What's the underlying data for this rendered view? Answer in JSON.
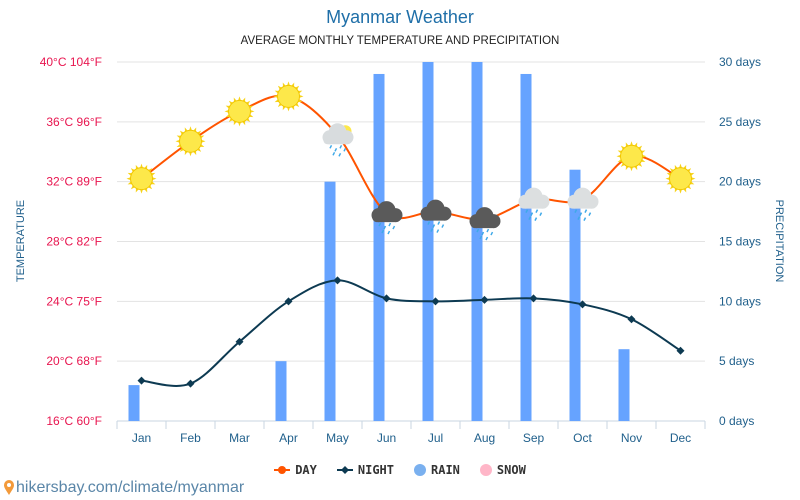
{
  "header": {
    "title": "Myanmar Weather",
    "subtitle": "AVERAGE MONTHLY TEMPERATURE AND PRECIPITATION"
  },
  "chart_data": {
    "type": "line+bar",
    "title": "Myanmar Weather",
    "subtitle": "AVERAGE MONTHLY TEMPERATURE AND PRECIPITATION",
    "categories": [
      "Jan",
      "Feb",
      "Mar",
      "Apr",
      "May",
      "Jun",
      "Jul",
      "Aug",
      "Sep",
      "Oct",
      "Nov",
      "Dec"
    ],
    "ylabel_left": "TEMPERATURE",
    "ylabel_right": "PRECIPITATION",
    "ylim_left": [
      16,
      40
    ],
    "ylim_right": [
      0,
      30
    ],
    "left_ticks": [
      "16°C 60°F",
      "20°C 68°F",
      "24°C 75°F",
      "28°C 82°F",
      "32°C 89°F",
      "36°C 96°F",
      "40°C 104°F"
    ],
    "left_tick_values": [
      16,
      20,
      24,
      28,
      32,
      36,
      40
    ],
    "right_ticks": [
      "0 days",
      "5 days",
      "10 days",
      "15 days",
      "20 days",
      "25 days",
      "30 days"
    ],
    "right_tick_values": [
      0,
      5,
      10,
      15,
      20,
      25,
      30
    ],
    "series": [
      {
        "name": "DAY",
        "color": "#ff5400",
        "values": [
          32.2,
          34.7,
          36.7,
          37.7,
          35.1,
          29.9,
          30.0,
          29.5,
          30.8,
          30.8,
          33.7,
          32.2
        ]
      },
      {
        "name": "NIGHT",
        "color": "#0d3a52",
        "values": [
          18.7,
          18.5,
          21.3,
          24.0,
          25.4,
          24.2,
          24.0,
          24.1,
          24.2,
          23.8,
          22.8,
          20.7
        ]
      },
      {
        "name": "RAIN",
        "color": "#66a3ff",
        "values": [
          3,
          0,
          0,
          5,
          20,
          29,
          30,
          30,
          29,
          21,
          6,
          0
        ]
      },
      {
        "name": "SNOW",
        "color": "#ffb6c8",
        "values": [
          0,
          0,
          0,
          0,
          0,
          0,
          0,
          0,
          0,
          0,
          0,
          0
        ]
      }
    ],
    "weather_icons": [
      "sun",
      "sun",
      "sun",
      "sun",
      "sun-cloud-rain",
      "heavy-rain",
      "heavy-rain",
      "heavy-rain",
      "cloud-rain",
      "cloud-rain",
      "sun",
      "sun"
    ],
    "grid": true,
    "legend_position": "bottom"
  },
  "legend": [
    {
      "label": "DAY",
      "color": "#ff5400"
    },
    {
      "label": "NIGHT",
      "color": "#0d3a52"
    },
    {
      "label": "RAIN",
      "color": "#7ab0ef"
    },
    {
      "label": "SNOW",
      "color": "#ffb6c8"
    }
  ],
  "footer": {
    "link": "hikersbay.com/climate/myanmar"
  }
}
